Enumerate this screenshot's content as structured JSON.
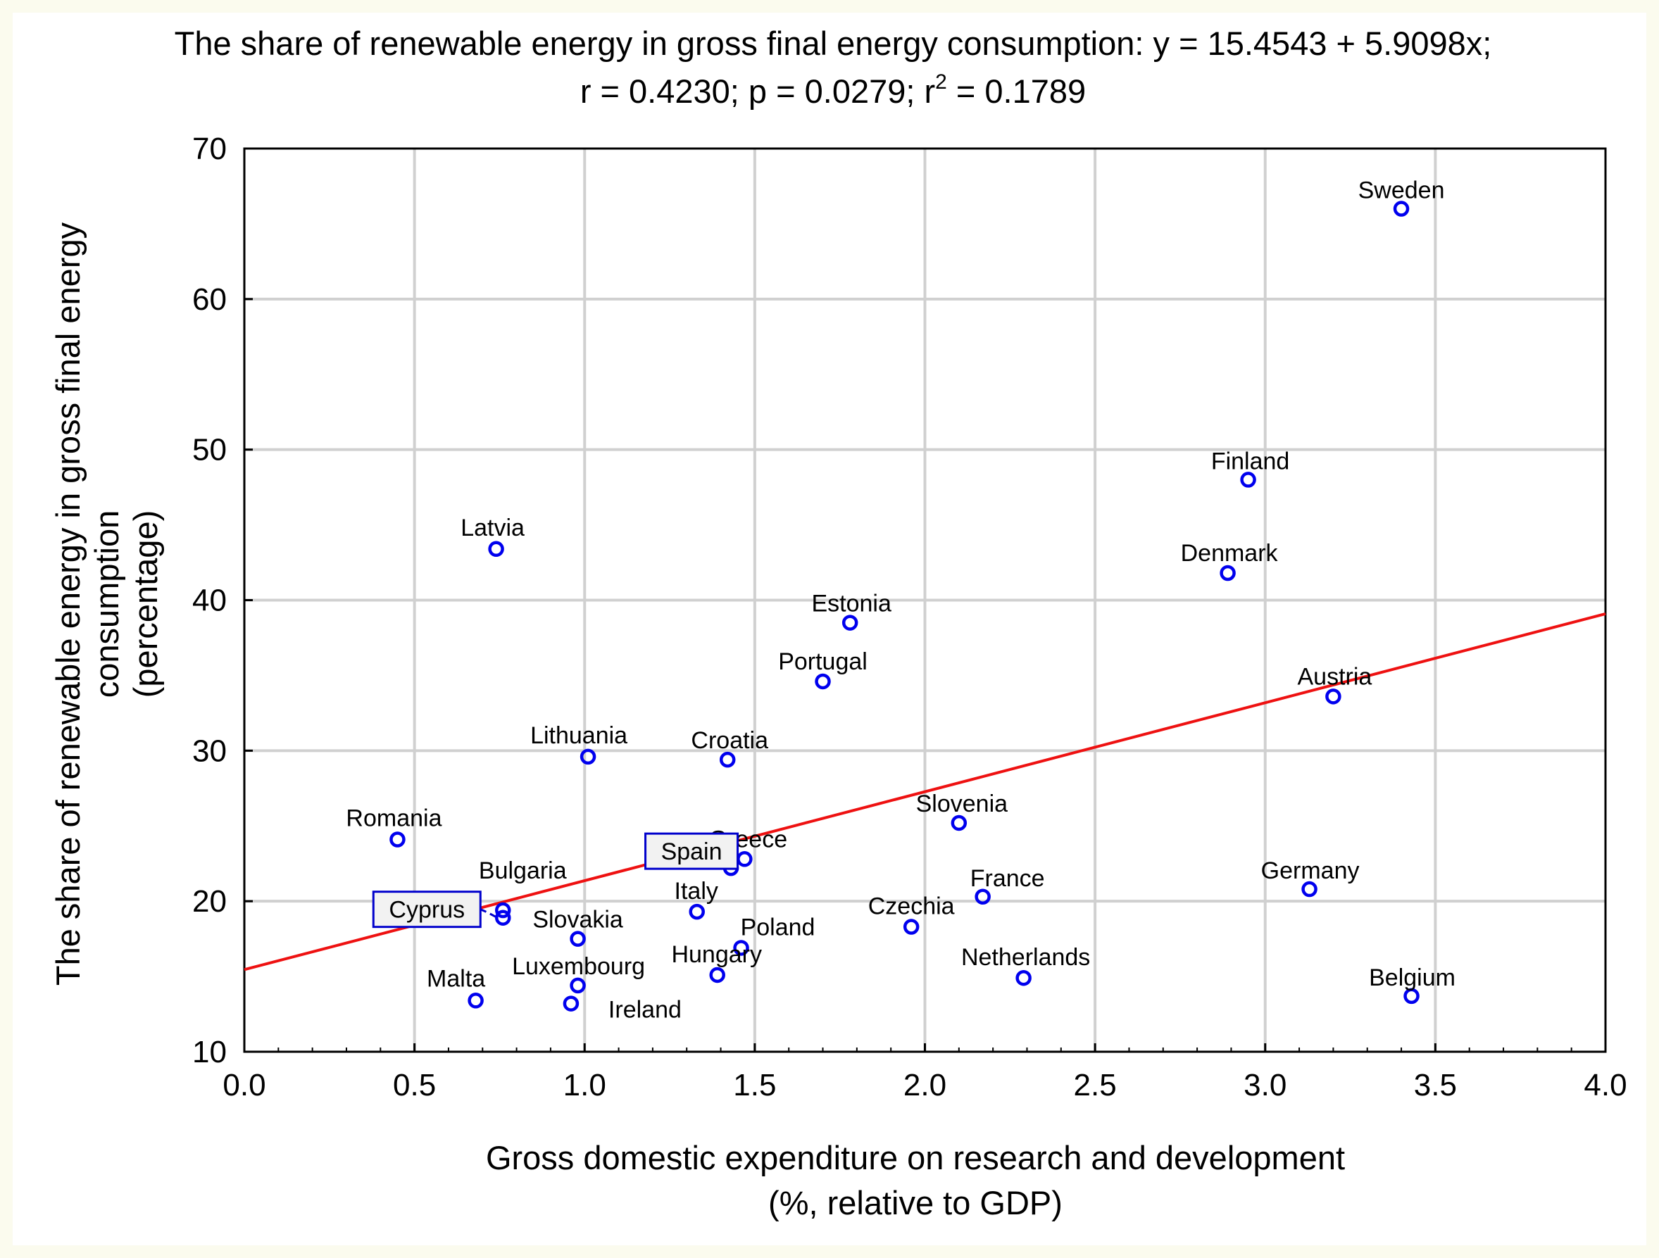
{
  "chart_data": {
    "type": "scatter",
    "title_line1": "The share of renewable energy in gross final energy consumption:   y = 15.4543 + 5.9098x;",
    "title_line2_a": "r = 0.4230; p = 0.0279; r",
    "title_line2_sup": "2",
    "title_line2_b": " = 0.1789",
    "xlabel_line1": "Gross domestic expenditure on research and development",
    "xlabel_line2": "(%, relative to GDP)",
    "ylabel_line1": "The share of renewable energy in gross final energy",
    "ylabel_line2": "consumption",
    "ylabel_line3": "(percentage)",
    "xlim": [
      0.0,
      4.0
    ],
    "ylim": [
      10,
      70
    ],
    "xticks": [
      "0.0",
      "0.5",
      "1.0",
      "1.5",
      "2.0",
      "2.5",
      "3.0",
      "3.5",
      "4.0"
    ],
    "yticks": [
      "10",
      "20",
      "30",
      "40",
      "50",
      "60",
      "70"
    ],
    "grid": true,
    "fit": {
      "intercept": 15.4543,
      "slope": 5.9098
    },
    "points": [
      {
        "name": "Sweden",
        "x": 3.4,
        "y": 66.0
      },
      {
        "name": "Finland",
        "x": 2.95,
        "y": 48.0
      },
      {
        "name": "Latvia",
        "x": 0.74,
        "y": 43.4
      },
      {
        "name": "Denmark",
        "x": 2.89,
        "y": 41.8
      },
      {
        "name": "Estonia",
        "x": 1.78,
        "y": 38.5
      },
      {
        "name": "Portugal",
        "x": 1.7,
        "y": 34.6
      },
      {
        "name": "Austria",
        "x": 3.2,
        "y": 33.6
      },
      {
        "name": "Lithuania",
        "x": 1.01,
        "y": 29.6
      },
      {
        "name": "Croatia",
        "x": 1.42,
        "y": 29.4
      },
      {
        "name": "Slovenia",
        "x": 2.1,
        "y": 25.2
      },
      {
        "name": "Romania",
        "x": 0.45,
        "y": 24.1
      },
      {
        "name": "Greece",
        "x": 1.47,
        "y": 22.8
      },
      {
        "name": "Spain",
        "x": 1.43,
        "y": 22.2
      },
      {
        "name": "Germany",
        "x": 3.13,
        "y": 20.8
      },
      {
        "name": "France",
        "x": 2.17,
        "y": 20.3
      },
      {
        "name": "Bulgaria",
        "x": 0.76,
        "y": 19.4
      },
      {
        "name": "Cyprus",
        "x": 0.76,
        "y": 18.9
      },
      {
        "name": "Italy",
        "x": 1.33,
        "y": 19.3
      },
      {
        "name": "Czechia",
        "x": 1.96,
        "y": 18.3
      },
      {
        "name": "Slovakia",
        "x": 0.98,
        "y": 17.5
      },
      {
        "name": "Poland",
        "x": 1.46,
        "y": 16.9
      },
      {
        "name": "Hungary",
        "x": 1.39,
        "y": 15.1
      },
      {
        "name": "Netherlands",
        "x": 2.29,
        "y": 14.9
      },
      {
        "name": "Luxembourg",
        "x": 0.98,
        "y": 14.4
      },
      {
        "name": "Belgium",
        "x": 3.43,
        "y": 13.7
      },
      {
        "name": "Malta",
        "x": 0.68,
        "y": 13.4
      },
      {
        "name": "Ireland",
        "x": 0.96,
        "y": 13.2
      }
    ]
  }
}
